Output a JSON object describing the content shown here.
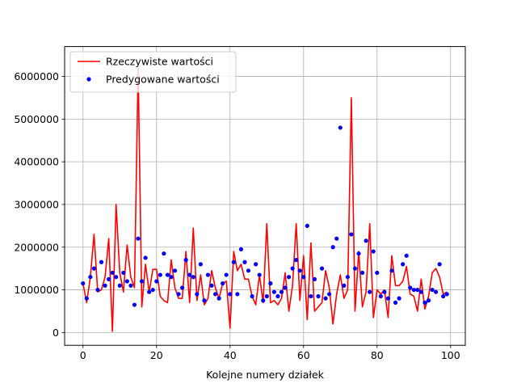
{
  "chart_data": {
    "type": "line",
    "title": "",
    "xlabel": "Kolejne numery działek",
    "ylabel": "",
    "xlim": [
      -5,
      104
    ],
    "ylim": [
      -300000,
      6700000
    ],
    "grid": true,
    "legend_position": "top-left",
    "x_ticks": [
      0,
      20,
      40,
      60,
      80,
      100
    ],
    "x_tick_labels": [
      "0",
      "20",
      "40",
      "60",
      "80",
      "100"
    ],
    "y_ticks": [
      0,
      1000000,
      2000000,
      3000000,
      4000000,
      5000000,
      6000000
    ],
    "y_tick_labels": [
      "0",
      "1000000",
      "2000000",
      "3000000",
      "4000000",
      "5000000",
      "6000000"
    ],
    "x": [
      0,
      1,
      2,
      3,
      4,
      5,
      6,
      7,
      8,
      9,
      10,
      11,
      12,
      13,
      14,
      15,
      16,
      17,
      18,
      19,
      20,
      21,
      22,
      23,
      24,
      25,
      26,
      27,
      28,
      29,
      30,
      31,
      32,
      33,
      34,
      35,
      36,
      37,
      38,
      39,
      40,
      41,
      42,
      43,
      44,
      45,
      46,
      47,
      48,
      49,
      50,
      51,
      52,
      53,
      54,
      55,
      56,
      57,
      58,
      59,
      60,
      61,
      62,
      63,
      64,
      65,
      66,
      67,
      68,
      69,
      70,
      71,
      72,
      73,
      74,
      75,
      76,
      77,
      78,
      79,
      80,
      81,
      82,
      83,
      84,
      85,
      86,
      87,
      88,
      89,
      90,
      91,
      92,
      93,
      94,
      95,
      96,
      97,
      98,
      99
    ],
    "series": [
      {
        "name": "Rzeczywiste wartości",
        "style": "line",
        "color": "#ff0000",
        "values": [
          1150000,
          700000,
          1300000,
          2300000,
          950000,
          1000000,
          1300000,
          2200000,
          30000,
          3000000,
          1400000,
          950000,
          2050000,
          1300000,
          1050000,
          6200000,
          600000,
          1600000,
          950000,
          1480000,
          1480000,
          850000,
          750000,
          700000,
          1700000,
          1050000,
          800000,
          800000,
          1900000,
          700000,
          2450000,
          750000,
          1350000,
          650000,
          800000,
          1450000,
          1050000,
          800000,
          1150000,
          1200000,
          100000,
          1900000,
          1450000,
          1600000,
          1250000,
          1250000,
          850000,
          650000,
          1350000,
          700000,
          2550000,
          700000,
          750000,
          650000,
          800000,
          1400000,
          500000,
          1100000,
          2550000,
          750000,
          1800000,
          300000,
          2100000,
          500000,
          600000,
          700000,
          1450000,
          1050000,
          200000,
          900000,
          1350000,
          800000,
          1000000,
          5500000,
          500000,
          1900000,
          600000,
          950000,
          2550000,
          350000,
          1000000,
          900000,
          1000000,
          350000,
          1800000,
          1100000,
          1100000,
          1200000,
          1550000,
          900000,
          850000,
          500000,
          1250000,
          550000,
          850000,
          1400000,
          1500000,
          1300000,
          900000,
          950000
        ]
      },
      {
        "name": "Predygowane wartości",
        "style": "markers",
        "color": "#0000ff",
        "values": [
          1150000,
          800000,
          1300000,
          1500000,
          1000000,
          1650000,
          1100000,
          1250000,
          1400000,
          1300000,
          1100000,
          1400000,
          1200000,
          1100000,
          650000,
          2200000,
          1200000,
          1750000,
          950000,
          1000000,
          1200000,
          1350000,
          1850000,
          1350000,
          1300000,
          1450000,
          900000,
          1050000,
          1700000,
          1350000,
          1300000,
          900000,
          1600000,
          750000,
          1350000,
          1100000,
          900000,
          800000,
          1150000,
          1350000,
          900000,
          1650000,
          900000,
          1950000,
          1650000,
          1450000,
          850000,
          1600000,
          1350000,
          750000,
          850000,
          1150000,
          950000,
          850000,
          950000,
          1050000,
          1300000,
          1500000,
          1700000,
          1450000,
          1300000,
          2500000,
          850000,
          1250000,
          850000,
          1500000,
          800000,
          900000,
          2000000,
          2200000,
          4800000,
          1100000,
          1300000,
          2300000,
          1500000,
          1850000,
          1400000,
          2150000,
          950000,
          1900000,
          1400000,
          850000,
          950000,
          800000,
          1450000,
          700000,
          800000,
          1600000,
          1800000,
          1050000,
          1000000,
          1000000,
          950000,
          700000,
          750000,
          1000000,
          950000,
          1600000,
          850000,
          900000
        ]
      }
    ]
  }
}
